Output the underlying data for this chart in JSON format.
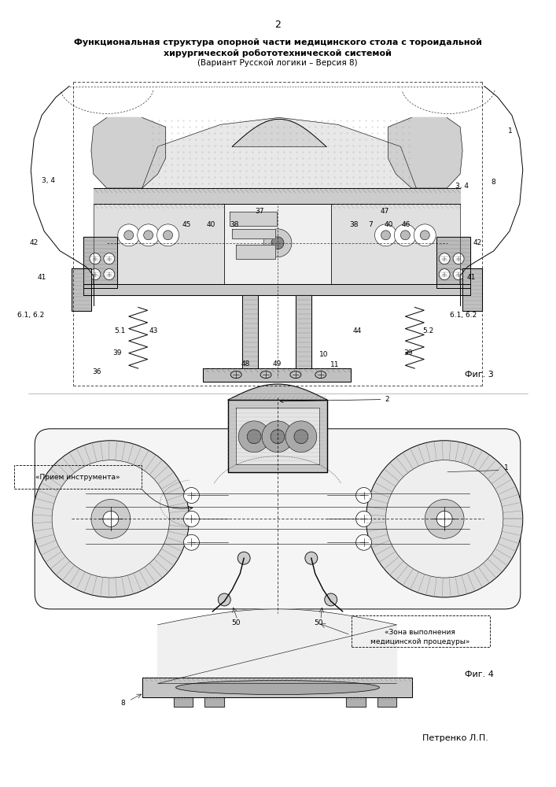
{
  "page_number": "2",
  "title_line1": "Функциональная структура опорной части медицинского стола с тороидальной",
  "title_line2": "хирургической робототехнической системой",
  "title_line3": "(Вариант Русской логики – Версия 8)",
  "fig3_label": "Фиг. 3",
  "fig4_label": "Фиг. 4",
  "author": "Петренко Л.П.",
  "bg_color": "#ffffff",
  "line_color": "#000000"
}
